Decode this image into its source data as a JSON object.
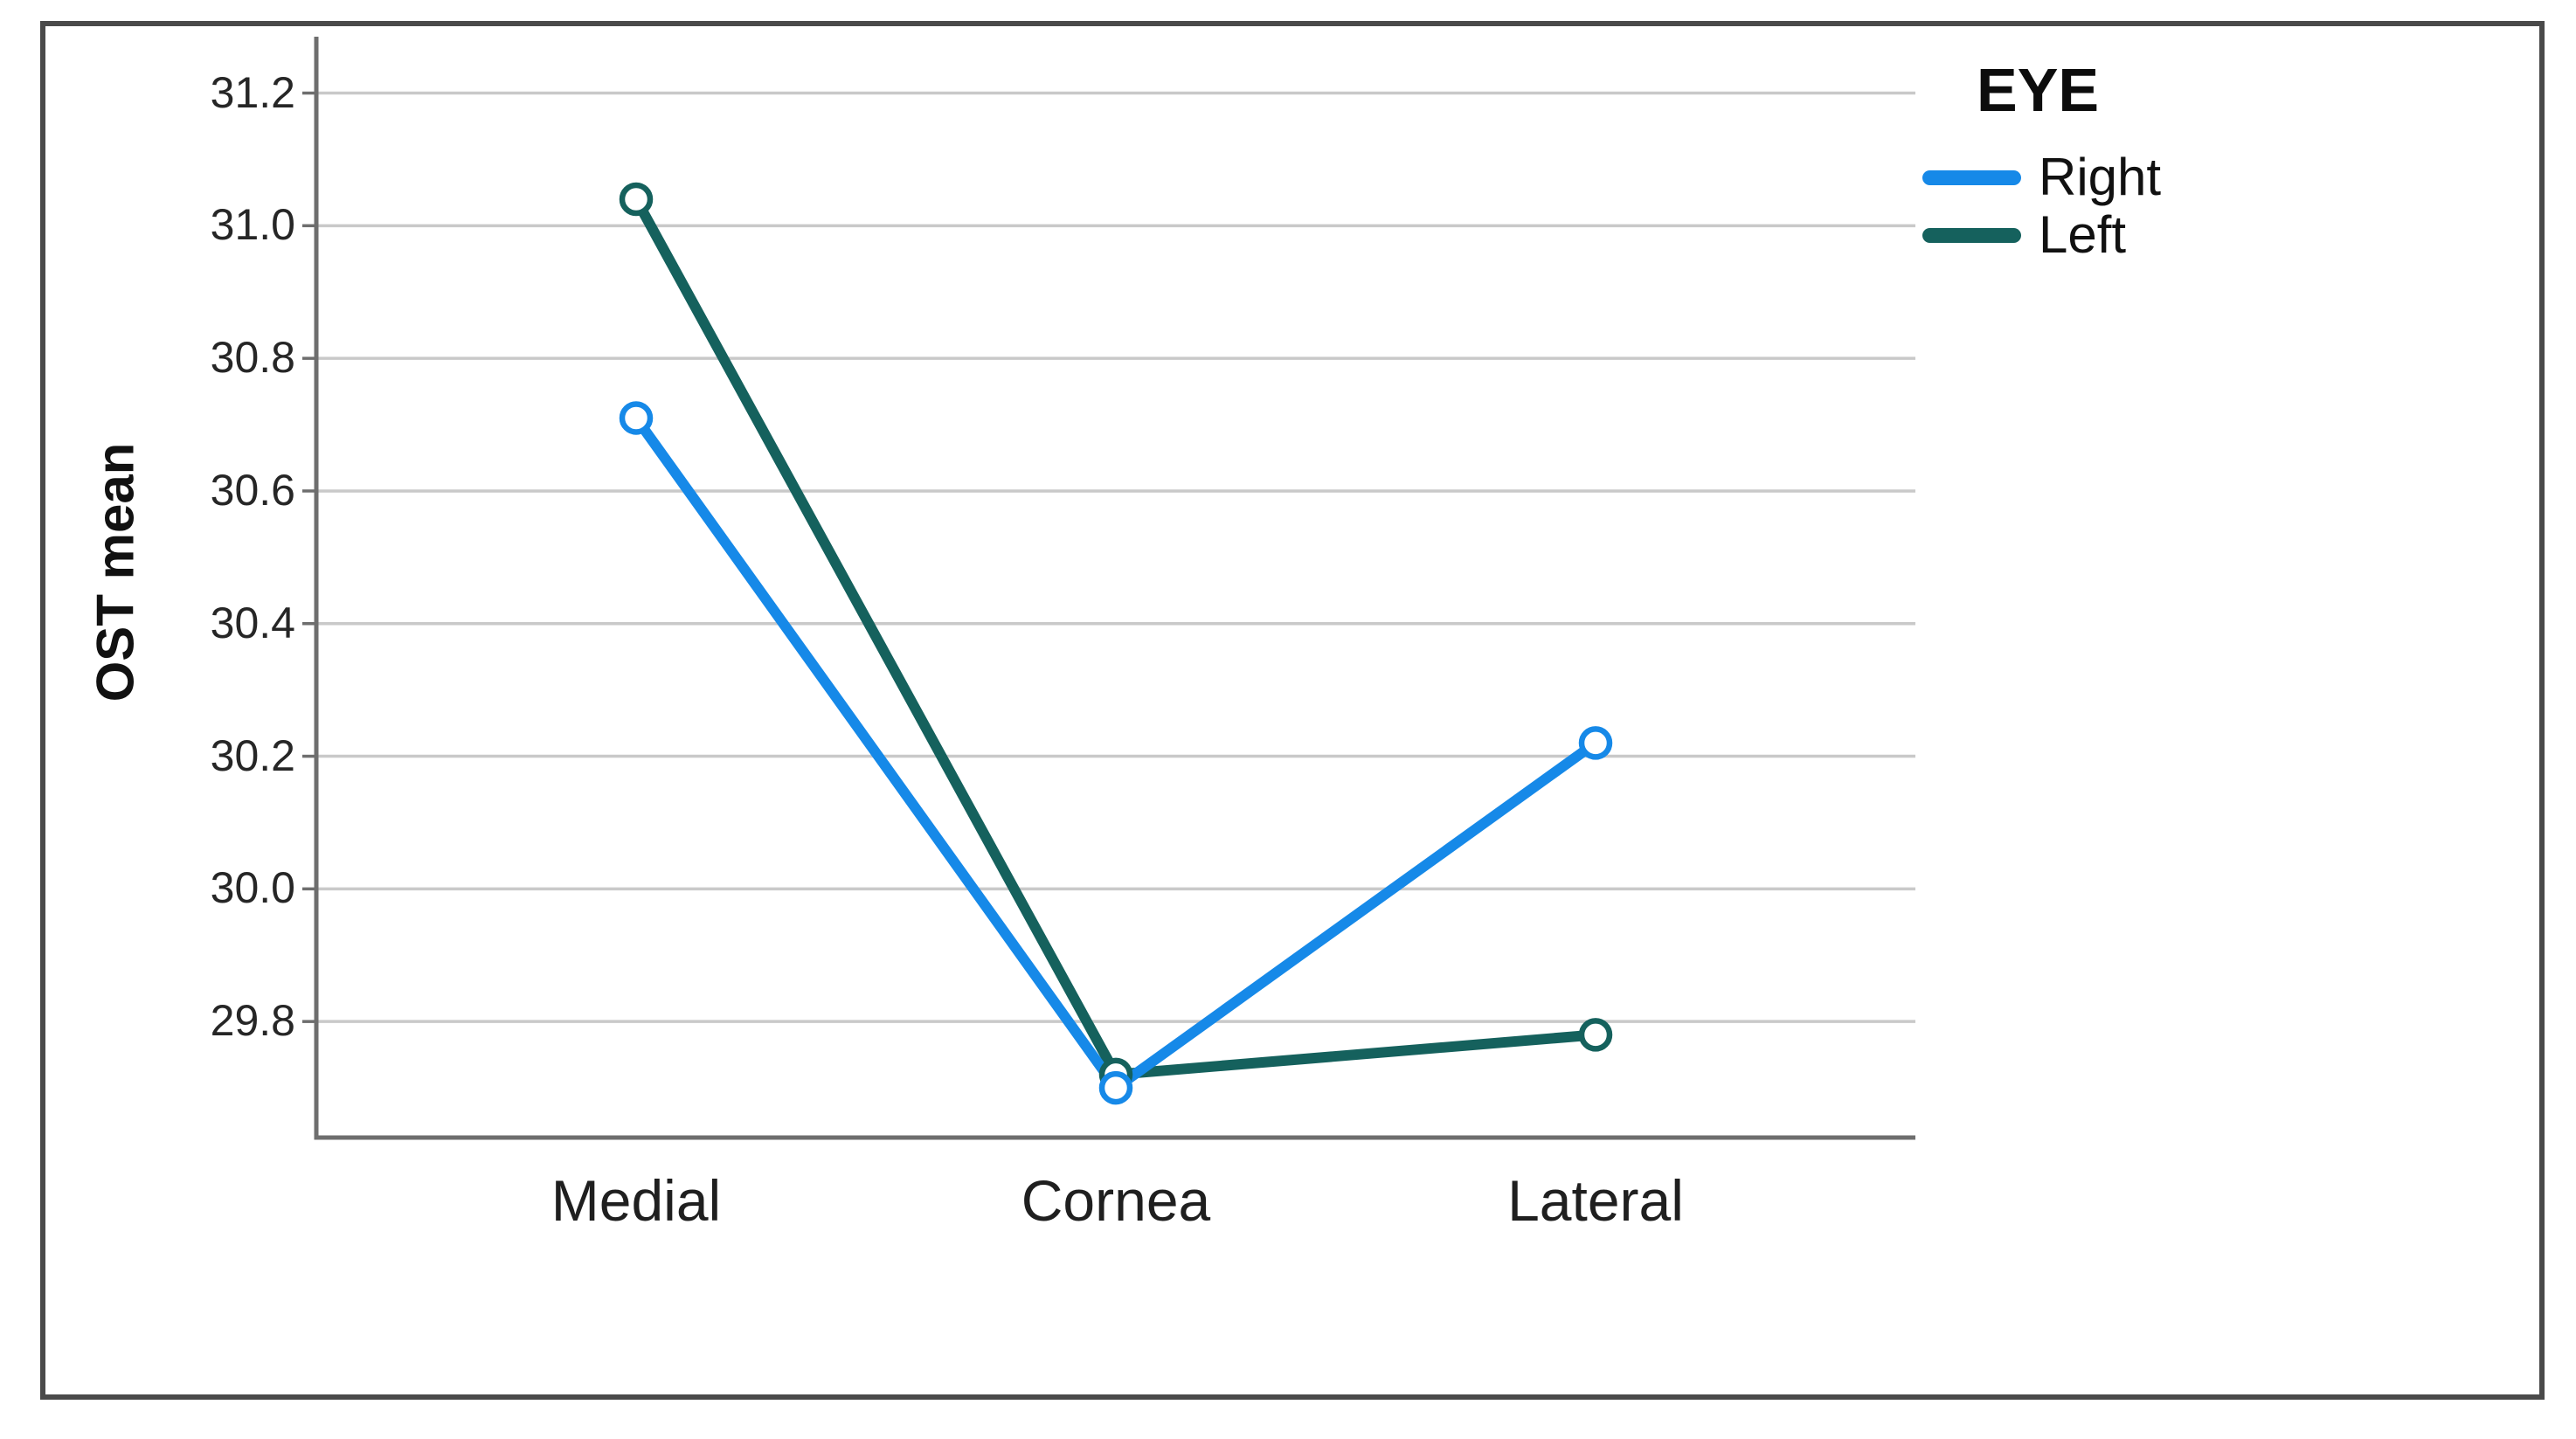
{
  "figure": {
    "background": "#ffffff",
    "border_color": "#4a4a4a"
  },
  "chart_data": {
    "type": "line",
    "title": "",
    "xlabel": "",
    "ylabel": "OST mean",
    "categories": [
      "Medial",
      "Cornea",
      "Lateral"
    ],
    "series": [
      {
        "name": "Right",
        "color": "#1689E8",
        "values": [
          30.71,
          29.7,
          30.22
        ]
      },
      {
        "name": "Left",
        "color": "#15615D",
        "values": [
          31.04,
          29.72,
          29.78
        ]
      }
    ],
    "yticks": [
      29.8,
      30.0,
      30.2,
      30.4,
      30.6,
      30.8,
      31.0,
      31.2
    ],
    "ylim": [
      29.625,
      31.285
    ],
    "grid": "horizontal",
    "grid_color": "#c9c9c9",
    "axis_color": "#6e6e6e",
    "legend_title": "EYE",
    "legend_position": "top-right",
    "marker": "open-circle"
  }
}
